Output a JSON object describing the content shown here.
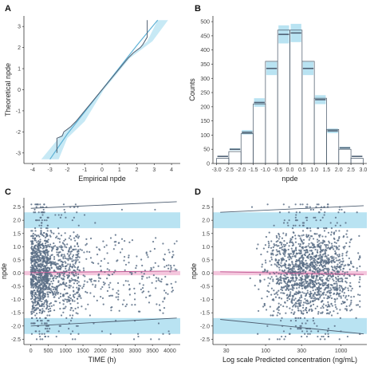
{
  "panels": [
    "A",
    "B",
    "C",
    "D"
  ],
  "colors": {
    "point": "#5a6f86",
    "band_blue": "#b9e3f2",
    "band_pink": "#f4c6dd",
    "line_blue": "#5fb2d6",
    "line_dark": "#4f5f72",
    "bar_edge": "#455566"
  },
  "chart_data": [
    {
      "panel": "A",
      "type": "line",
      "xlabel": "Empirical npde",
      "ylabel": "Theoretical npde",
      "xlim": [
        -4.5,
        4.5
      ],
      "ylim": [
        -3.5,
        3.5
      ],
      "xticks": [
        -4,
        -3,
        -2,
        -1,
        0,
        1,
        2,
        3,
        4
      ],
      "yticks": [
        -3,
        -2,
        -1,
        0,
        1,
        2,
        3
      ],
      "series": [
        {
          "x": [
            -2.6,
            -2.6,
            -2.3,
            -2.2,
            -1.8,
            -1.5,
            -1.0,
            -0.5,
            0,
            0.5,
            1.0,
            1.5,
            1.8,
            2.2,
            2.35,
            2.6,
            2.6
          ],
          "y": [
            -3.0,
            -2.3,
            -2.2,
            -2.0,
            -1.75,
            -1.5,
            -1.0,
            -0.5,
            0,
            0.5,
            1.0,
            1.5,
            1.75,
            2.0,
            2.15,
            2.5,
            3.3
          ]
        },
        {
          "x": [
            -3.0,
            -2.0,
            -1.0,
            0,
            1.0,
            2.0,
            3.2
          ],
          "y": [
            -3.3,
            -2.1,
            -1.05,
            0,
            1.05,
            2.1,
            3.3
          ]
        }
      ],
      "band_lower": [
        [
          -3.5,
          -3.3
        ],
        [
          -2.5,
          -2.3
        ],
        [
          -1.5,
          -1.5
        ],
        [
          0,
          0
        ],
        [
          1.5,
          1.5
        ],
        [
          2.6,
          2.3
        ],
        [
          3.2,
          3.3
        ]
      ],
      "band_upper": [
        [
          -2.5,
          -3.3
        ],
        [
          -2.0,
          -2.3
        ],
        [
          -1.0,
          -1.5
        ],
        [
          0.1,
          0
        ],
        [
          1.6,
          1.5
        ],
        [
          2.9,
          2.3
        ],
        [
          3.8,
          3.3
        ]
      ]
    },
    {
      "panel": "B",
      "type": "bar",
      "xlabel": "npde",
      "ylabel": "Counts",
      "ylim": [
        0,
        520
      ],
      "yticks": [
        0,
        50,
        100,
        150,
        200,
        250,
        300,
        350,
        400,
        450,
        500
      ],
      "xtick_labels": [
        "-3.0",
        "-2.5",
        "-2.0",
        "-1.5",
        "-1.0",
        "-0.5",
        "0.0",
        "0.5",
        "1.0",
        "1.5",
        "2.0",
        "2.5",
        "3.0"
      ],
      "categories": [
        "-3.0",
        "-2.5",
        "-2.0",
        "-1.5",
        "-1.0",
        "-0.5",
        "0.0",
        "0.5",
        "1.0",
        "1.5",
        "2.0",
        "2.5"
      ],
      "values": [
        18,
        42,
        105,
        210,
        360,
        470,
        470,
        360,
        230,
        120,
        50,
        18
      ],
      "expected": [
        25,
        50,
        110,
        215,
        335,
        455,
        460,
        335,
        225,
        115,
        55,
        25
      ]
    },
    {
      "panel": "C",
      "type": "scatter",
      "xlabel": "TIME (h)",
      "ylabel": "npde",
      "xlim": [
        -200,
        4300
      ],
      "ylim": [
        -2.7,
        2.85
      ],
      "xticks": [
        0,
        500,
        1000,
        1500,
        2000,
        2500,
        3000,
        3500,
        4000
      ],
      "yticks": [
        -2.5,
        -2.0,
        -1.5,
        -1.0,
        -0.5,
        0.0,
        0.5,
        1.0,
        1.5,
        2.0,
        2.5
      ],
      "bands": [
        {
          "color": "blue",
          "ylow": 1.7,
          "yhigh": 2.3
        },
        {
          "color": "pink",
          "ylow": -0.08,
          "yhigh": 0.08
        },
        {
          "color": "blue",
          "ylow": -2.3,
          "yhigh": -1.7
        }
      ],
      "trend_lines": [
        {
          "x": [
            0,
            4200
          ],
          "y": [
            2.45,
            2.7
          ]
        },
        {
          "x": [
            0,
            4200
          ],
          "y": [
            0.02,
            0.08
          ]
        },
        {
          "x": [
            0,
            4200
          ],
          "y": [
            -2.0,
            -1.7
          ]
        }
      ]
    },
    {
      "panel": "D",
      "type": "scatter",
      "xlabel": "Log scale Predicted concentration (ng/mL)",
      "ylabel": "npde",
      "xlim": [
        20,
        2200
      ],
      "ylim": [
        -2.7,
        2.85
      ],
      "xscale": "log",
      "xticks": [
        30,
        100,
        300,
        1000
      ],
      "yticks": [
        -2.5,
        -2.0,
        -1.5,
        -1.0,
        -0.5,
        0.0,
        0.5,
        1.0,
        1.5,
        2.0,
        2.5
      ],
      "bands": [
        {
          "color": "blue",
          "ylow": 1.7,
          "yhigh": 2.3
        },
        {
          "color": "pink",
          "ylow": -0.08,
          "yhigh": 0.08
        },
        {
          "color": "blue",
          "ylow": -2.3,
          "yhigh": -1.7
        }
      ],
      "trend_lines": [
        {
          "x": [
            25,
            2000
          ],
          "y": [
            2.3,
            2.55
          ]
        },
        {
          "x": [
            25,
            2000
          ],
          "y": [
            0.05,
            -0.05
          ]
        },
        {
          "x": [
            25,
            2000
          ],
          "y": [
            -1.75,
            -2.3
          ]
        }
      ]
    }
  ]
}
